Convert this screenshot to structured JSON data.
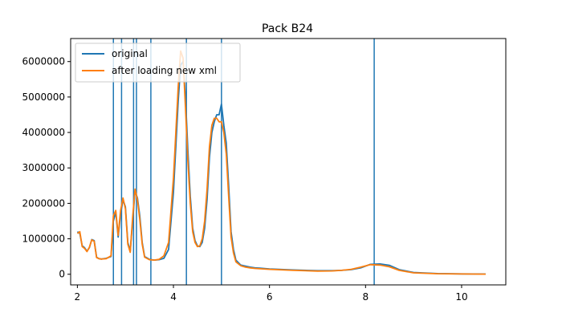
{
  "chart_data": {
    "type": "line",
    "title": "Pack B24",
    "xlabel": "",
    "ylabel": "",
    "xlim": [
      1.86,
      10.92
    ],
    "ylim": [
      -300000,
      6650000
    ],
    "x_ticks": [
      2,
      4,
      6,
      8,
      10
    ],
    "x_tick_labels": [
      "2",
      "4",
      "6",
      "8",
      "10"
    ],
    "y_ticks": [
      0,
      1000000,
      2000000,
      3000000,
      4000000,
      5000000,
      6000000
    ],
    "y_tick_labels": [
      "0",
      "1000000",
      "2000000",
      "3000000",
      "4000000",
      "5000000",
      "6000000"
    ],
    "legend_position": "top-left",
    "grid": false,
    "vertical_lines": {
      "color": "#1f77b4",
      "x": [
        2.75,
        2.92,
        3.17,
        3.23,
        3.53,
        4.27,
        5.0,
        8.18
      ]
    },
    "series": [
      {
        "name": "original",
        "color": "#1f77b4",
        "x": [
          2.0,
          2.05,
          2.1,
          2.15,
          2.2,
          2.25,
          2.3,
          2.35,
          2.4,
          2.45,
          2.5,
          2.6,
          2.7,
          2.75,
          2.8,
          2.85,
          2.9,
          2.95,
          3.0,
          3.05,
          3.1,
          3.15,
          3.2,
          3.25,
          3.3,
          3.35,
          3.4,
          3.5,
          3.6,
          3.7,
          3.8,
          3.9,
          4.0,
          4.05,
          4.1,
          4.15,
          4.2,
          4.25,
          4.3,
          4.35,
          4.4,
          4.45,
          4.5,
          4.55,
          4.6,
          4.65,
          4.7,
          4.75,
          4.8,
          4.85,
          4.9,
          4.95,
          5.0,
          5.05,
          5.1,
          5.15,
          5.2,
          5.25,
          5.3,
          5.4,
          5.5,
          5.6,
          5.7,
          5.8,
          6.0,
          6.5,
          7.0,
          7.3,
          7.5,
          7.7,
          7.9,
          8.1,
          8.3,
          8.5,
          8.7,
          9.0,
          9.5,
          10.0,
          10.5
        ],
        "values": [
          1200000,
          1150000,
          800000,
          750000,
          650000,
          750000,
          980000,
          950000,
          480000,
          440000,
          430000,
          450000,
          500000,
          1500000,
          1750000,
          1050000,
          1700000,
          2100000,
          1900000,
          900000,
          650000,
          1500000,
          2350000,
          2150000,
          1650000,
          900000,
          500000,
          420000,
          400000,
          410000,
          450000,
          700000,
          2300000,
          3600000,
          4900000,
          5900000,
          6000000,
          5000000,
          3500000,
          2200000,
          1300000,
          950000,
          800000,
          780000,
          900000,
          1300000,
          2100000,
          3300000,
          4000000,
          4300000,
          4500000,
          4500000,
          4800000,
          4200000,
          3700000,
          2500000,
          1200000,
          700000,
          400000,
          260000,
          230000,
          200000,
          180000,
          170000,
          150000,
          120000,
          100000,
          100000,
          110000,
          130000,
          180000,
          280000,
          290000,
          250000,
          130000,
          50000,
          20000,
          10000,
          5000
        ]
      },
      {
        "name": "after loading new xml",
        "color": "#ff7f0e",
        "x": [
          2.0,
          2.05,
          2.1,
          2.15,
          2.2,
          2.25,
          2.3,
          2.35,
          2.4,
          2.45,
          2.5,
          2.6,
          2.7,
          2.75,
          2.8,
          2.85,
          2.9,
          2.95,
          3.0,
          3.05,
          3.1,
          3.15,
          3.2,
          3.25,
          3.3,
          3.35,
          3.4,
          3.5,
          3.6,
          3.7,
          3.8,
          3.9,
          4.0,
          4.05,
          4.1,
          4.15,
          4.2,
          4.25,
          4.3,
          4.35,
          4.4,
          4.45,
          4.5,
          4.55,
          4.6,
          4.65,
          4.7,
          4.75,
          4.8,
          4.85,
          4.9,
          4.95,
          5.0,
          5.05,
          5.1,
          5.15,
          5.2,
          5.25,
          5.3,
          5.4,
          5.5,
          5.6,
          5.7,
          5.8,
          6.0,
          6.5,
          7.0,
          7.3,
          7.5,
          7.7,
          7.9,
          8.1,
          8.3,
          8.5,
          8.7,
          9.0,
          9.5,
          10.0,
          10.5
        ],
        "values": [
          1150000,
          1200000,
          780000,
          730000,
          640000,
          760000,
          970000,
          930000,
          470000,
          440000,
          430000,
          440000,
          520000,
          1650000,
          1800000,
          1100000,
          1800000,
          2150000,
          1850000,
          850000,
          620000,
          1600000,
          2400000,
          2100000,
          1550000,
          850000,
          480000,
          410000,
          400000,
          420000,
          520000,
          900000,
          2700000,
          4000000,
          5300000,
          6300000,
          6100000,
          4700000,
          3200000,
          2000000,
          1200000,
          900000,
          780000,
          800000,
          1000000,
          1500000,
          2400000,
          3600000,
          4200000,
          4400000,
          4400000,
          4300000,
          4300000,
          4000000,
          3400000,
          2200000,
          1050000,
          600000,
          350000,
          240000,
          200000,
          180000,
          165000,
          155000,
          140000,
          110000,
          90000,
          95000,
          110000,
          140000,
          200000,
          270000,
          260000,
          210000,
          110000,
          40000,
          15000,
          8000,
          4000
        ]
      }
    ]
  }
}
